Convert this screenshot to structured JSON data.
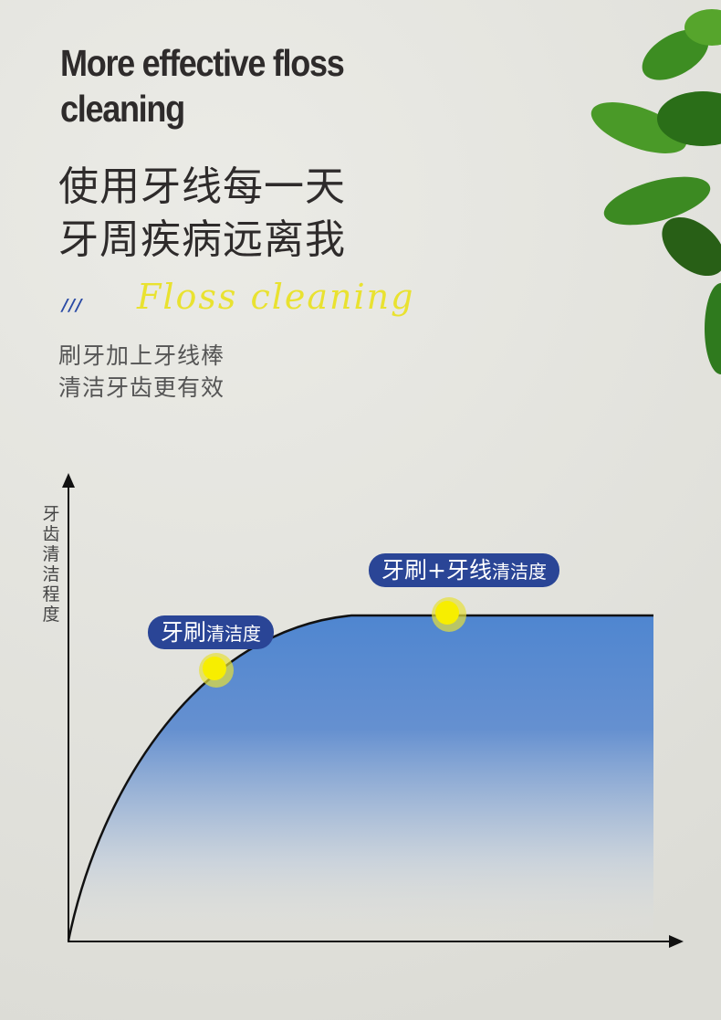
{
  "headline_en": [
    "More effective floss",
    "cleaning"
  ],
  "script_text": "Floss cleaning",
  "headline_cn": [
    "使用牙线每一天",
    "牙周疾病远离我"
  ],
  "decor": "///",
  "subtitle": [
    "刷牙加上牙线棒",
    "清洁牙齿更有效"
  ],
  "y_axis_label": "牙齿清洁程度",
  "labels": {
    "brush": {
      "main": "牙刷",
      "suffix": "清洁度"
    },
    "brush_floss": {
      "main": "牙刷+牙线",
      "suffix": "清洁度"
    }
  },
  "colors": {
    "fill": "#4f86d0",
    "pill": "#2a4596",
    "point": "#f7ee00",
    "accent_script": "#f2ee45"
  }
}
